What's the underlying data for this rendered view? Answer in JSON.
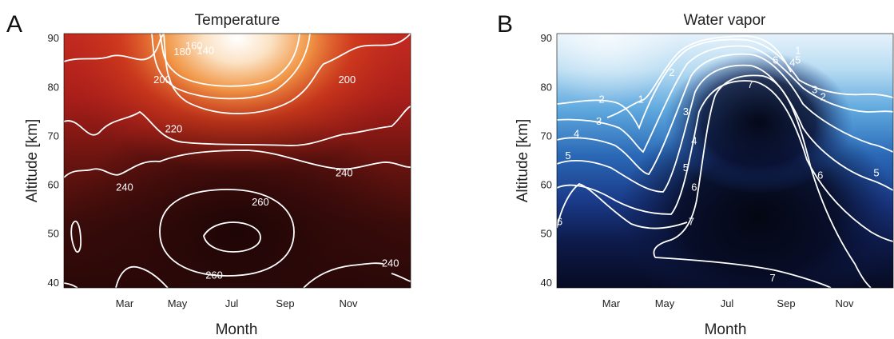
{
  "chart_data": [
    {
      "type": "heatmap",
      "panel_label": "A",
      "title": "Temperature",
      "xlabel": "Month",
      "ylabel": "Altitude [km]",
      "x_ticks": [
        "Mar",
        "May",
        "Jul",
        "Sep",
        "Nov"
      ],
      "y_ticks": [
        40,
        50,
        60,
        70,
        80,
        90
      ],
      "ylim": [
        39,
        91
      ],
      "colormap": [
        "#2a0808",
        "#5a1010",
        "#8e1a16",
        "#bc2c1c",
        "#e0541c",
        "#f29040",
        "#fad7b0",
        "#ffffff"
      ],
      "contour_levels": [
        140,
        160,
        180,
        200,
        220,
        240,
        260
      ],
      "contour_labels": [
        {
          "text": "140",
          "month": 5.9,
          "alt": 87.5
        },
        {
          "text": "160",
          "month": 5.5,
          "alt": 88.5
        },
        {
          "text": "180",
          "month": 5.1,
          "alt": 87.2
        },
        {
          "text": "200",
          "month": 4.4,
          "alt": 81.5
        },
        {
          "text": "200",
          "month": 10.8,
          "alt": 81.5
        },
        {
          "text": "220",
          "month": 4.8,
          "alt": 71.5
        },
        {
          "text": "240",
          "month": 3.1,
          "alt": 59.5
        },
        {
          "text": "240",
          "month": 10.7,
          "alt": 62.5
        },
        {
          "text": "240",
          "month": 12.3,
          "alt": 44.0
        },
        {
          "text": "260",
          "month": 7.8,
          "alt": 56.5
        },
        {
          "text": "260",
          "month": 6.2,
          "alt": 41.5
        }
      ]
    },
    {
      "type": "heatmap",
      "panel_label": "B",
      "title": "Water vapor",
      "xlabel": "Month",
      "ylabel": "Altitude [km]",
      "x_ticks": [
        "Mar",
        "May",
        "Jul",
        "Sep",
        "Nov"
      ],
      "y_ticks": [
        40,
        50,
        60,
        70,
        80,
        90
      ],
      "ylim": [
        39,
        91
      ],
      "colormap": [
        "#ffffff",
        "#a8d4f0",
        "#5aa6dc",
        "#2a6cb8",
        "#1a3c8a",
        "#0d1a4a",
        "#060a1c"
      ],
      "contour_levels": [
        1,
        2,
        3,
        4,
        5,
        6,
        7
      ],
      "contour_labels": [
        {
          "text": "1",
          "month": 4.0,
          "alt": 77.5
        },
        {
          "text": "1",
          "month": 9.6,
          "alt": 87.5
        },
        {
          "text": "2",
          "month": 2.6,
          "alt": 77.5
        },
        {
          "text": "2",
          "month": 5.1,
          "alt": 83.0
        },
        {
          "text": "2",
          "month": 10.5,
          "alt": 78.0
        },
        {
          "text": "3",
          "month": 2.5,
          "alt": 73.0
        },
        {
          "text": "3",
          "month": 5.6,
          "alt": 75.0
        },
        {
          "text": "3",
          "month": 10.2,
          "alt": 79.5
        },
        {
          "text": "4",
          "month": 1.7,
          "alt": 70.5
        },
        {
          "text": "4",
          "month": 5.9,
          "alt": 69.0
        },
        {
          "text": "4",
          "month": 9.4,
          "alt": 85.0
        },
        {
          "text": "5",
          "month": 1.4,
          "alt": 66.0
        },
        {
          "text": "5",
          "month": 5.6,
          "alt": 63.5
        },
        {
          "text": "5",
          "month": 12.4,
          "alt": 62.5
        },
        {
          "text": "5",
          "month": 9.6,
          "alt": 85.5
        },
        {
          "text": "6",
          "month": 5.9,
          "alt": 59.5
        },
        {
          "text": "6",
          "month": 1.1,
          "alt": 52.5
        },
        {
          "text": "6",
          "month": 10.4,
          "alt": 62.0
        },
        {
          "text": "6",
          "month": 8.8,
          "alt": 85.5
        },
        {
          "text": "7",
          "month": 7.9,
          "alt": 80.5
        },
        {
          "text": "7",
          "month": 5.8,
          "alt": 52.5
        },
        {
          "text": "7",
          "month": 8.7,
          "alt": 41.0
        }
      ]
    }
  ]
}
